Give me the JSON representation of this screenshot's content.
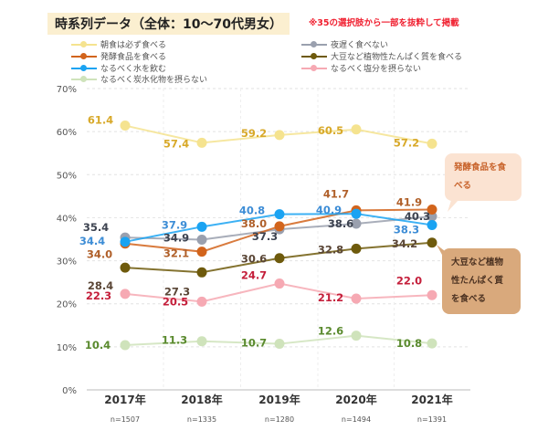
{
  "title": "時系列データ（全体：10〜70代男女）",
  "note": "※35の選択肢から一部を抜粋して掲載",
  "callouts": {
    "fermented": "発酵食品を食べる",
    "soy": "大豆など植物性たんぱく質を食べる"
  },
  "chart_data": {
    "type": "line",
    "categories": [
      "2017年",
      "2018年",
      "2019年",
      "2020年",
      "2021年"
    ],
    "sample_sizes": [
      "n=1507",
      "n=1335",
      "n=1280",
      "n=1494",
      "n=1391"
    ],
    "ylim": [
      0,
      70
    ],
    "yticks": [
      "0%",
      "10%",
      "20%",
      "30%",
      "40%",
      "50%",
      "60%",
      "70%"
    ],
    "grid": true,
    "legend_position": "top",
    "series": [
      {
        "name": "朝食は必ず食べる",
        "values": [
          61.4,
          57.4,
          59.2,
          60.5,
          57.2
        ],
        "color": "#f5e38f",
        "label_color": "#d8a92a"
      },
      {
        "name": "夜遅く食べない",
        "values": [
          35.4,
          34.9,
          37.3,
          38.6,
          40.3
        ],
        "color": "#9aa0ae",
        "label_color": "#3d4350"
      },
      {
        "name": "発酵食品を食べる",
        "values": [
          34.0,
          32.1,
          38.0,
          41.7,
          41.9
        ],
        "color": "#d2641c",
        "label_color": "#b0602a"
      },
      {
        "name": "大豆など植物性たんぱく質を食べる",
        "values": [
          28.4,
          27.3,
          30.6,
          32.8,
          34.2
        ],
        "color": "#6e5a0c",
        "label_color": "#5a4636"
      },
      {
        "name": "なるべく水を飲む",
        "values": [
          34.4,
          37.9,
          40.8,
          40.9,
          38.3
        ],
        "color": "#1aa3f2",
        "label_color": "#3d8dd6"
      },
      {
        "name": "なるべく塩分を摂らない",
        "values": [
          22.3,
          20.5,
          24.7,
          21.2,
          22.0
        ],
        "color": "#f6a9b3",
        "label_color": "#c41e3a"
      },
      {
        "name": "なるべく炭水化物を摂らない",
        "values": [
          10.4,
          11.3,
          10.7,
          12.6,
          10.8
        ],
        "color": "#cfe3bb",
        "label_color": "#5a8a2e"
      }
    ]
  }
}
